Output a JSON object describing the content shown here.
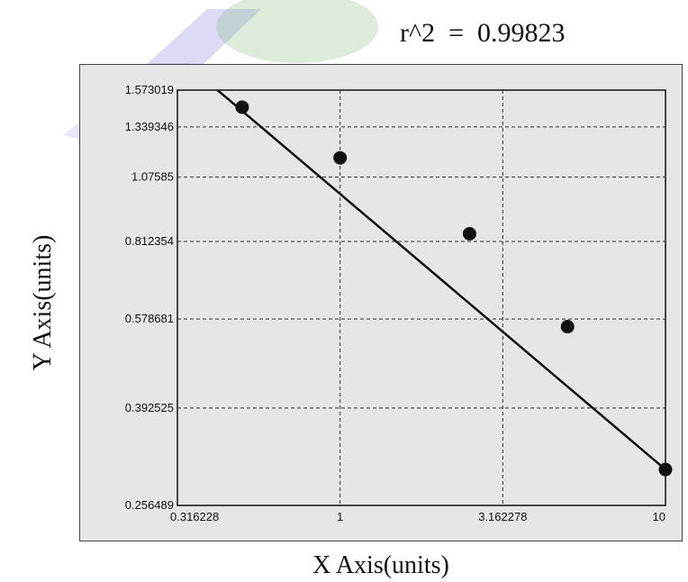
{
  "chart_data": {
    "type": "scatter",
    "annotation": "r^2  =  0.99823",
    "xlabel": "X Axis(units)",
    "ylabel": "Y Axis(units)",
    "x_scale": "log",
    "y_scale": "log",
    "xlim": [
      0.316228,
      10
    ],
    "ylim": [
      0.256489,
      1.573019
    ],
    "x_ticks": [
      "0.316228",
      "1",
      "3.162278",
      "10"
    ],
    "y_ticks": [
      "1.573019",
      "1.339346",
      "1.07585",
      "0.812354",
      "0.578681",
      "0.392525",
      "0.256489"
    ],
    "grid": true,
    "points": {
      "x": [
        0.5,
        1.0,
        2.5,
        5.0,
        10.0
      ],
      "y": [
        1.46,
        1.17,
        0.84,
        0.56,
        0.3
      ]
    },
    "fit_line": {
      "x": [
        0.42,
        10.0
      ],
      "y": [
        1.573019,
        0.3
      ]
    },
    "colors": {
      "plot_background": "#e6e6e6",
      "line": "#111111",
      "points": "#111111",
      "grid": "#333333"
    }
  }
}
